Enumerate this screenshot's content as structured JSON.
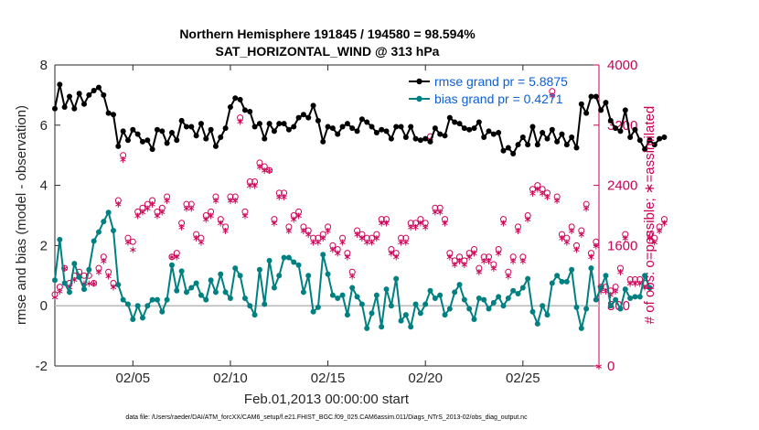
{
  "chart_data": {
    "type": "line",
    "title": "Northern Hemisphere 191845 / 194580 = 98.594%",
    "subtitle": "SAT_HORIZONTAL_WIND @ 313 hPa",
    "xlabel": "Feb.01,2013 00:00:00 start",
    "ylabel": "rmse and bias (model - observation)",
    "y2label": "# of obs: o=possible; ∗=assimilated",
    "ylim": [
      -2,
      8
    ],
    "y2lim": [
      0,
      4000
    ],
    "xlim": [
      1,
      28.9
    ],
    "x_ticks": [
      5,
      10,
      15,
      20,
      25
    ],
    "x_tick_labels": [
      "02/05",
      "02/10",
      "02/15",
      "02/20",
      "02/25"
    ],
    "y_ticks": [
      -2,
      0,
      2,
      4,
      6,
      8
    ],
    "y_tick_labels": [
      "-2",
      "0",
      "2",
      "4",
      "6",
      "8"
    ],
    "y2_ticks": [
      0,
      800,
      1600,
      2400,
      3200,
      4000
    ],
    "y2_tick_labels": [
      "0",
      "800",
      "1600",
      "2400",
      "3200",
      "4000"
    ],
    "x_start": 1.0,
    "x_step": 0.25,
    "series": [
      {
        "name": "rmse",
        "legend": "rmse grand pr = 5.8875",
        "color": "#000000",
        "marker": "star",
        "values": [
          6.55,
          7.35,
          6.6,
          6.95,
          6.55,
          7.05,
          6.7,
          7.0,
          7.15,
          7.25,
          7.0,
          6.4,
          6.35,
          5.3,
          5.8,
          5.5,
          5.85,
          5.7,
          5.45,
          5.5,
          5.2,
          5.85,
          5.8,
          5.4,
          5.75,
          5.5,
          6.15,
          5.95,
          5.95,
          5.65,
          6.05,
          5.55,
          5.85,
          5.3,
          5.6,
          5.9,
          6.6,
          6.9,
          6.85,
          6.5,
          6.45,
          5.95,
          6.05,
          5.55,
          6.05,
          5.8,
          6.05,
          6.05,
          5.85,
          5.95,
          6.25,
          6.35,
          6.25,
          6.65,
          6.15,
          5.45,
          5.95,
          5.9,
          5.7,
          5.95,
          6.05,
          5.9,
          5.8,
          6.2,
          6.1,
          5.95,
          5.75,
          5.85,
          5.8,
          5.55,
          5.95,
          5.95,
          5.6,
          5.95,
          5.55,
          5.5,
          5.55,
          5.45,
          5.9,
          5.7,
          5.65,
          6.25,
          6.1,
          6.05,
          5.9,
          5.85,
          5.9,
          6.1,
          5.6,
          5.8,
          5.7,
          5.75,
          5.15,
          5.25,
          5.05,
          5.35,
          5.6,
          5.35,
          5.95,
          5.35,
          5.75,
          5.55,
          5.85,
          5.45,
          5.7,
          5.35,
          5.6,
          5.25,
          6.7,
          6.4,
          6.95,
          6.95,
          6.5,
          6.75,
          6.15,
          5.9,
          5.8,
          6.5,
          5.6,
          5.85,
          5.5,
          5.2,
          5.5,
          5.35,
          5.55,
          5.6
        ]
      },
      {
        "name": "bias",
        "legend": "bias grand pr = 0.4271",
        "color": "#008080",
        "marker": "star",
        "values": [
          0.85,
          2.2,
          0.75,
          0.45,
          1.4,
          0.95,
          0.55,
          1.2,
          2.15,
          2.45,
          2.8,
          3.1,
          2.5,
          0.7,
          0.2,
          0.05,
          -0.45,
          0.0,
          -0.4,
          0.0,
          0.2,
          0.2,
          -0.2,
          0.2,
          1.35,
          0.5,
          1.15,
          0.45,
          0.6,
          0.75,
          0.35,
          0.2,
          0.85,
          0.45,
          1.05,
          0.45,
          0.25,
          1.25,
          1.0,
          0.25,
          0.0,
          -0.3,
          1.2,
          0.05,
          1.5,
          0.6,
          1.0,
          1.6,
          1.6,
          1.45,
          1.35,
          0.45,
          1.0,
          -0.2,
          -0.05,
          1.7,
          1.05,
          0.35,
          0.25,
          0.35,
          -0.3,
          0.6,
          0.3,
          0.05,
          -0.75,
          -0.25,
          0.35,
          -0.7,
          0.55,
          0.0,
          0.9,
          -0.5,
          -0.3,
          -0.7,
          0.05,
          -0.25,
          0.05,
          0.5,
          0.25,
          0.35,
          -0.3,
          -0.1,
          0.45,
          0.7,
          0.2,
          -0.1,
          -0.45,
          0.25,
          0.2,
          -0.1,
          0.1,
          0.3,
          0.0,
          0.25,
          0.5,
          0.4,
          0.6,
          0.9,
          -0.2,
          -0.6,
          0.0,
          -0.3,
          0.75,
          1.0,
          0.8,
          0.8,
          1.2,
          -0.05,
          -0.75,
          -0.1,
          1.25,
          0.2,
          0.6,
          1.0,
          0.0,
          0.2,
          -0.1,
          0.55,
          0.25,
          0.3,
          0.3,
          1.0,
          0.6
        ]
      }
    ],
    "obs_assimilated": {
      "name": "# of obs assimilated",
      "color": "#cc0055",
      "marker": "∗",
      "values": [
        920,
        1000,
        1300,
        1050,
        1150,
        1200,
        1100,
        1100,
        1100,
        1250,
        1400,
        1200,
        1050,
        2150,
        2750,
        1650,
        1550,
        2000,
        2050,
        2100,
        2150,
        2000,
        2050,
        2200,
        1450,
        1450,
        1850,
        2100,
        2100,
        1700,
        1650,
        1950,
        2000,
        2200,
        1900,
        1800,
        2200,
        2200,
        3250,
        2000,
        2400,
        2400,
        2650,
        2600,
        2600,
        1900,
        2250,
        2250,
        1800,
        1950,
        2000,
        1800,
        1750,
        1650,
        1650,
        1700,
        1800,
        1550,
        1500,
        1650,
        1450,
        1200,
        1750,
        1700,
        1650,
        1650,
        1700,
        1900,
        1900,
        1500,
        1450,
        1650,
        1650,
        1850,
        1850,
        1900,
        1850,
        3000,
        2050,
        2050,
        1900,
        1450,
        1350,
        1400,
        1350,
        1450,
        1500,
        1250,
        1400,
        1400,
        1300,
        1500,
        1900,
        1200,
        1400,
        1800,
        1400,
        1950,
        2300,
        2350,
        2300,
        2250,
        3600,
        2200,
        1700,
        1650,
        1800,
        1550,
        1750,
        2100,
        1450,
        1600,
        1000,
        1000,
        950,
        1000,
        1250,
        1700,
        1100,
        1100,
        1100,
        1050,
        1700,
        1650,
        1800,
        1900
      ]
    },
    "obs_possible": {
      "name": "# of obs possible",
      "color": "#cc0055",
      "marker": "o",
      "values": [
        950,
        1050,
        1300,
        1100,
        1200,
        1250,
        1200,
        1200,
        1100,
        1300,
        1450,
        1250,
        1100,
        2200,
        2800,
        1700,
        1650,
        2050,
        2100,
        2150,
        2200,
        2050,
        2100,
        2250,
        1450,
        1500,
        1900,
        2150,
        2150,
        1750,
        1700,
        2000,
        2050,
        2250,
        1950,
        1850,
        2250,
        2250,
        3300,
        2050,
        2450,
        2450,
        2700,
        2650,
        2600,
        1950,
        2300,
        2300,
        1850,
        2000,
        2050,
        1850,
        1800,
        1700,
        1700,
        1750,
        1850,
        1600,
        1550,
        1700,
        1500,
        1250,
        1800,
        1750,
        1700,
        1700,
        1750,
        1950,
        1950,
        1550,
        1500,
        1700,
        1700,
        1900,
        1900,
        1950,
        1900,
        3050,
        2100,
        2100,
        1950,
        1500,
        1400,
        1450,
        1400,
        1500,
        1550,
        1300,
        1450,
        1450,
        1350,
        1550,
        1950,
        1250,
        1450,
        1850,
        1450,
        2000,
        2350,
        2400,
        2350,
        2300,
        3650,
        2250,
        1750,
        1700,
        1850,
        1600,
        1800,
        2150,
        1500,
        1650,
        1050,
        1050,
        1000,
        1050,
        1300,
        1750,
        1150,
        1150,
        1150,
        1100,
        1750,
        1700,
        1850,
        1950
      ]
    },
    "extra_points": [
      {
        "x": 28.9,
        "y2": 0,
        "marker": "∗"
      }
    ],
    "legend_position": "top-right",
    "grid": false
  },
  "footer": {
    "data_file": "data file: /Users/raeder/DAI/ATM_forcXX/CAM6_setup/f.e21.FHIST_BGC.f09_025.CAM6assim.011/Diags_NTrS_2013-02/obs_diag_output.nc"
  }
}
